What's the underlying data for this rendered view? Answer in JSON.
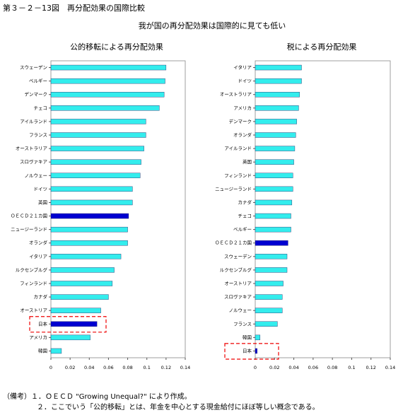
{
  "title": "第３－２－13図　再分配効果の国際比較",
  "subtitle": "我が国の再分配効果は国際的に見ても低い",
  "notes": [
    "（備考）１．ＯＥＣＤ \"Growing Unequal?\" により作成。",
    "２．ここでいう「公的移転」とは、年金を中心とする現金給付にほぼ等しい概念である。"
  ],
  "chart_data": [
    {
      "type": "barh",
      "title": "公的移転による再分配効果",
      "categories": [
        "スウェーデン",
        "ベルギー",
        "デンマーク",
        "チェコ",
        "アイルランド",
        "フランス",
        "オーストラリア",
        "スロヴァキア",
        "ノルウェー",
        "ドイツ",
        "英国",
        "ＯＥＣＤ２１カ国",
        "ニュージーランド",
        "オランダ",
        "イタリア",
        "ルクセンブルグ",
        "フィンランド",
        "カナダ",
        "オーストリア",
        "日本",
        "アメリカ",
        "韓国"
      ],
      "values": [
        0.12,
        0.119,
        0.118,
        0.113,
        0.099,
        0.099,
        0.097,
        0.094,
        0.093,
        0.085,
        0.085,
        0.081,
        0.08,
        0.08,
        0.073,
        0.066,
        0.064,
        0.06,
        0.052,
        0.048,
        0.041,
        0.011
      ],
      "colors": [
        "#33eded",
        "#33eded",
        "#33eded",
        "#33eded",
        "#33eded",
        "#33eded",
        "#33eded",
        "#33eded",
        "#33eded",
        "#33eded",
        "#33eded",
        "#0000d0",
        "#33eded",
        "#33eded",
        "#33eded",
        "#33eded",
        "#33eded",
        "#33eded",
        "#33eded",
        "#0000d0",
        "#33eded",
        "#33eded"
      ],
      "xlim": [
        0,
        0.14
      ],
      "xticks": [
        0,
        0.02,
        0.04,
        0.06,
        0.08,
        0.1,
        0.12,
        0.14
      ]
    },
    {
      "type": "barh",
      "title": "税による再分配効果",
      "categories": [
        "イタリア",
        "ドイツ",
        "オーストラリア",
        "アメリカ",
        "デンマーク",
        "オランダ",
        "アイルランド",
        "英国",
        "フィンランド",
        "ニュージーランド",
        "カナダ",
        "チェコ",
        "ベルギー",
        "ＯＥＣＤ２１カ国",
        "スウェーデン",
        "ルクセンブルグ",
        "オーストリア",
        "スロヴァキア",
        "ノルウェー",
        "フランス",
        "韓国",
        "日本"
      ],
      "values": [
        0.048,
        0.048,
        0.046,
        0.045,
        0.043,
        0.042,
        0.041,
        0.04,
        0.039,
        0.039,
        0.038,
        0.037,
        0.037,
        0.034,
        0.033,
        0.033,
        0.029,
        0.028,
        0.028,
        0.023,
        0.005,
        0.002
      ],
      "colors": [
        "#33eded",
        "#33eded",
        "#33eded",
        "#33eded",
        "#33eded",
        "#33eded",
        "#33eded",
        "#33eded",
        "#33eded",
        "#33eded",
        "#33eded",
        "#33eded",
        "#33eded",
        "#0000d0",
        "#33eded",
        "#33eded",
        "#33eded",
        "#33eded",
        "#33eded",
        "#33eded",
        "#33eded",
        "#0000d0"
      ],
      "xlim": [
        0,
        0.14
      ],
      "xticks": [
        0,
        0.02,
        0.04,
        0.06,
        0.08,
        0.1,
        0.12,
        0.14
      ]
    }
  ]
}
